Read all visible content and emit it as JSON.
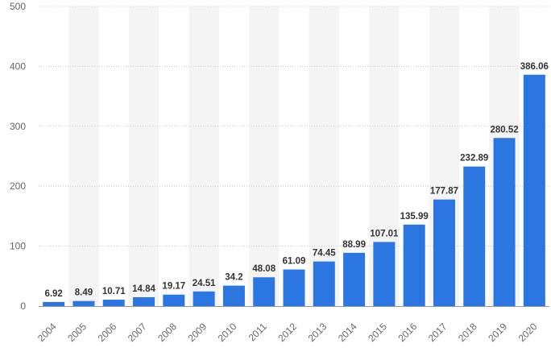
{
  "chart_data": {
    "type": "bar",
    "categories": [
      "2004",
      "2005",
      "2006",
      "2007",
      "2008",
      "2009",
      "2010",
      "2011",
      "2012",
      "2013",
      "2014",
      "2015",
      "2016",
      "2017",
      "2018",
      "2019",
      "2020"
    ],
    "values": [
      6.92,
      8.49,
      10.71,
      14.84,
      19.17,
      24.51,
      34.2,
      48.08,
      61.09,
      74.45,
      88.99,
      107.01,
      135.99,
      177.87,
      232.89,
      280.52,
      386.06
    ],
    "value_labels": [
      "6.92",
      "8.49",
      "10.71",
      "14.84",
      "19.17",
      "24.51",
      "34.2",
      "48.08",
      "61.09",
      "74.45",
      "88.99",
      "107.01",
      "135.99",
      "177.87",
      "232.89",
      "280.52",
      "386.06"
    ],
    "yticks": [
      "0",
      "100",
      "200",
      "300",
      "400",
      "500"
    ],
    "ylim": [
      0,
      500
    ],
    "grid": true,
    "legend": "none",
    "bar_color": "#2b76e0",
    "band_color": "#f4f4f4"
  }
}
